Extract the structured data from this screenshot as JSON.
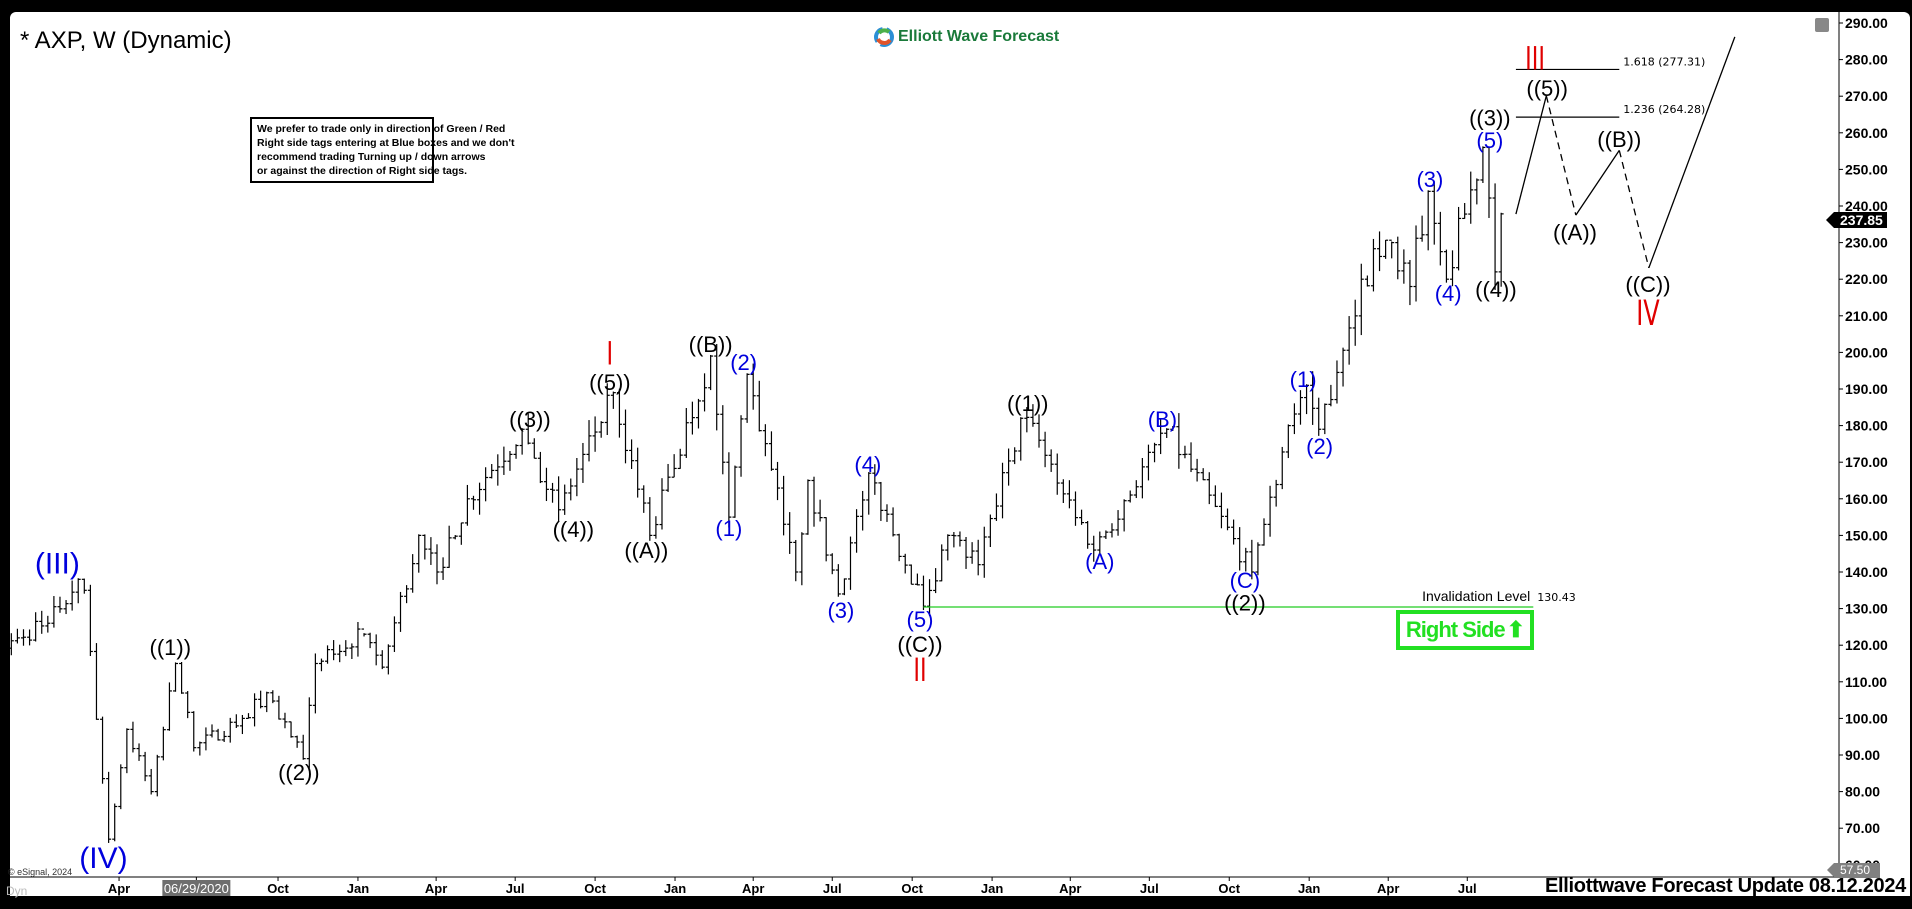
{
  "header": {
    "title": "* AXP, W (Dynamic)",
    "logo_text": "Elliott Wave Forecast"
  },
  "note_lines": [
    "We prefer to trade only in direction of Green / Red",
    "Right side tags entering at Blue boxes and we don't",
    "recommend trading Turning up / down arrows",
    "or against the direction of Right side tags."
  ],
  "right_side_label": "Right Side",
  "footer": "Elliottwave Forecast Update 08.12.2024",
  "copyright": "© eSignal, 2024",
  "dyn_label": "Dyn",
  "colors": {
    "bars": "#000000",
    "blue_labels": "#0000dd",
    "red_labels": "#e00000",
    "invalidation": "#22cc22",
    "right_side": "#22e022"
  },
  "chart_data": {
    "type": "ohlc-bar",
    "symbol": "AXP",
    "interval": "Weekly",
    "ylim": [
      57.5,
      292
    ],
    "y_ticks": [
      60,
      70,
      80,
      90,
      100,
      110,
      120,
      130,
      140,
      150,
      160,
      170,
      180,
      190,
      200,
      210,
      220,
      230,
      240,
      250,
      260,
      270,
      280,
      290
    ],
    "y_tick_labels": [
      "60.00",
      "70.00",
      "80.00",
      "90.00",
      "100.00",
      "110.00",
      "120.00",
      "130.00",
      "140.00",
      "150.00",
      "160.00",
      "170.00",
      "180.00",
      "190.00",
      "200.00",
      "210.00",
      "220.00",
      "230.00",
      "240.00",
      "250.00",
      "260.00",
      "270.00",
      "280.00",
      "290.00"
    ],
    "last_price": "237.85",
    "low_price_tag": "57.50",
    "x_ticks": [
      {
        "date": "2020-04-01",
        "label": "Apr"
      },
      {
        "date": "2020-06-29",
        "label": "06/29/2020",
        "highlight": true
      },
      {
        "date": "2020-10-01",
        "label": "Oct"
      },
      {
        "date": "2021-01-01",
        "label": "Jan"
      },
      {
        "date": "2021-04-01",
        "label": "Apr"
      },
      {
        "date": "2021-07-01",
        "label": "Jul"
      },
      {
        "date": "2021-10-01",
        "label": "Oct"
      },
      {
        "date": "2022-01-01",
        "label": "Jan"
      },
      {
        "date": "2022-04-01",
        "label": "Apr"
      },
      {
        "date": "2022-07-01",
        "label": "Jul"
      },
      {
        "date": "2022-10-01",
        "label": "Oct"
      },
      {
        "date": "2023-01-01",
        "label": "Jan"
      },
      {
        "date": "2023-04-01",
        "label": "Apr"
      },
      {
        "date": "2023-07-01",
        "label": "Jul"
      },
      {
        "date": "2023-10-01",
        "label": "Oct"
      },
      {
        "date": "2024-01-01",
        "label": "Jan"
      },
      {
        "date": "2024-04-01",
        "label": "Apr"
      },
      {
        "date": "2024-07-01",
        "label": "Jul"
      }
    ],
    "swing_points": [
      [
        "2019-11-08",
        118
      ],
      [
        "2019-12-06",
        122
      ],
      [
        "2020-01-10",
        126
      ],
      [
        "2020-02-14",
        138
      ],
      [
        "2020-02-21",
        135
      ],
      [
        "2020-03-20",
        67
      ],
      [
        "2020-04-10",
        97
      ],
      [
        "2020-05-08",
        80
      ],
      [
        "2020-06-05",
        115
      ],
      [
        "2020-06-26",
        92
      ],
      [
        "2020-08-21",
        100
      ],
      [
        "2020-09-18",
        107
      ],
      [
        "2020-10-30",
        89
      ],
      [
        "2020-11-13",
        115
      ],
      [
        "2021-01-08",
        123
      ],
      [
        "2021-01-29",
        114
      ],
      [
        "2021-03-12",
        150
      ],
      [
        "2021-04-02",
        140
      ],
      [
        "2021-05-07",
        160
      ],
      [
        "2021-07-09",
        179
      ],
      [
        "2021-08-20",
        157
      ],
      [
        "2021-10-22",
        189
      ],
      [
        "2021-12-03",
        150
      ],
      [
        "2022-02-11",
        199
      ],
      [
        "2022-03-04",
        155
      ],
      [
        "2022-03-25",
        194
      ],
      [
        "2022-05-20",
        140
      ],
      [
        "2022-06-03",
        165
      ],
      [
        "2022-07-08",
        134
      ],
      [
        "2022-08-12",
        167
      ],
      [
        "2022-10-14",
        130.65
      ],
      [
        "2022-11-11",
        150
      ],
      [
        "2022-12-16",
        142
      ],
      [
        "2023-02-03",
        182
      ],
      [
        "2023-02-24",
        176
      ],
      [
        "2023-04-28",
        146
      ],
      [
        "2023-07-21",
        179
      ],
      [
        "2023-10-27",
        140
      ],
      [
        "2023-12-08",
        180
      ],
      [
        "2023-12-29",
        191
      ],
      [
        "2024-01-12",
        179
      ],
      [
        "2024-03-01",
        220
      ],
      [
        "2024-04-05",
        230
      ],
      [
        "2024-04-26",
        218
      ],
      [
        "2024-05-17",
        244
      ],
      [
        "2024-06-07",
        220
      ],
      [
        "2024-07-19",
        256
      ],
      [
        "2024-08-02",
        222
      ],
      [
        "2024-08-09",
        237.85
      ]
    ],
    "wave_labels": [
      {
        "text": "(III)",
        "date": "2020-01-21",
        "price": 142.5,
        "color": "blue",
        "size": "xl"
      },
      {
        "text": "(IV)",
        "date": "2020-03-14",
        "price": 62.1,
        "color": "blue",
        "size": "xl"
      },
      {
        "text": "((1))",
        "date": "2020-05-30",
        "price": 119.5,
        "color": "black"
      },
      {
        "text": "((2))",
        "date": "2020-10-25",
        "price": 85.4,
        "color": "black"
      },
      {
        "text": "((3))",
        "date": "2021-07-18",
        "price": 181.8,
        "color": "black"
      },
      {
        "text": "((4))",
        "date": "2021-09-06",
        "price": 151.7,
        "color": "black"
      },
      {
        "text": "((5))",
        "date": "2021-10-18",
        "price": 191.9,
        "color": "black"
      },
      {
        "text": "I",
        "date": "2021-10-18",
        "price": 199.5,
        "color": "red",
        "size": "l"
      },
      {
        "text": "((A))",
        "date": "2021-11-29",
        "price": 146,
        "color": "black"
      },
      {
        "text": "((B))",
        "date": "2022-02-11",
        "price": 202.3,
        "color": "black"
      },
      {
        "text": "(1)",
        "date": "2022-03-04",
        "price": 152,
        "color": "blue"
      },
      {
        "text": "(2)",
        "date": "2022-03-21",
        "price": 197.4,
        "color": "blue"
      },
      {
        "text": "(3)",
        "date": "2022-07-11",
        "price": 129.6,
        "color": "blue"
      },
      {
        "text": "(4)",
        "date": "2022-08-11",
        "price": 169.5,
        "color": "blue"
      },
      {
        "text": "(5)",
        "date": "2022-10-10",
        "price": 127.1,
        "color": "blue"
      },
      {
        "text": "((C))",
        "date": "2022-10-10",
        "price": 120.3,
        "color": "black"
      },
      {
        "text": "II",
        "date": "2022-10-10",
        "price": 113,
        "color": "red",
        "size": "l"
      },
      {
        "text": "((1))",
        "date": "2023-02-11",
        "price": 186.2,
        "color": "black"
      },
      {
        "text": "(A)",
        "date": "2023-05-05",
        "price": 143,
        "color": "blue"
      },
      {
        "text": "(B)",
        "date": "2023-07-16",
        "price": 181.8,
        "color": "blue"
      },
      {
        "text": "(C)",
        "date": "2023-10-19",
        "price": 137.8,
        "color": "blue"
      },
      {
        "text": "((2))",
        "date": "2023-10-19",
        "price": 131.6,
        "color": "black"
      },
      {
        "text": "(1)",
        "date": "2023-12-25",
        "price": 192.7,
        "color": "blue"
      },
      {
        "text": "(2)",
        "date": "2024-01-13",
        "price": 174.4,
        "color": "blue"
      },
      {
        "text": "(3)",
        "date": "2024-05-19",
        "price": 247.4,
        "color": "blue"
      },
      {
        "text": "(4)",
        "date": "2024-06-09",
        "price": 216.2,
        "color": "blue"
      },
      {
        "text": "(5)",
        "date": "2024-07-27",
        "price": 258,
        "color": "blue"
      },
      {
        "text": "((3))",
        "date": "2024-07-27",
        "price": 264.2,
        "color": "black"
      },
      {
        "text": "((4))",
        "date": "2024-08-03",
        "price": 217.3,
        "color": "black"
      },
      {
        "text": "III",
        "date": "2024-09-17",
        "price": 280,
        "color": "red",
        "size": "l"
      },
      {
        "text": "((5))",
        "date": "2024-10-01",
        "price": 272.2,
        "color": "black"
      },
      {
        "text": "((A))",
        "date": "2024-11-02",
        "price": 232.9,
        "color": "black"
      },
      {
        "text": "((B))",
        "date": "2024-12-23",
        "price": 258.3,
        "color": "black"
      },
      {
        "text": "((C))",
        "date": "2025-01-25",
        "price": 218.7,
        "color": "black"
      },
      {
        "text": "IV",
        "date": "2025-01-25",
        "price": 210.5,
        "color": "red",
        "size": "xl"
      }
    ],
    "projection_path": [
      {
        "date": "2024-08-26",
        "price": 237.8
      },
      {
        "date": "2024-09-30",
        "price": 270.1,
        "dashed_after": true
      },
      {
        "date": "2024-11-03",
        "price": 237.5
      },
      {
        "date": "2024-12-23",
        "price": 255.2,
        "dashed_after": true
      },
      {
        "date": "2025-01-26",
        "price": 223.1
      },
      {
        "date": "2025-05-05",
        "price": 286.2
      }
    ],
    "fib_levels": [
      {
        "label": "1.618 (277.31)",
        "price": 277.31,
        "from": "2024-08-26",
        "to": "2024-12-23"
      },
      {
        "label": "1.236 (264.28)",
        "price": 264.28,
        "from": "2024-08-26",
        "to": "2024-12-23"
      }
    ],
    "invalidation": {
      "label": "Invalidation Level",
      "value_label": "130.43",
      "price": 130.43,
      "from": "2022-10-14",
      "to": "2024-09-15"
    }
  }
}
